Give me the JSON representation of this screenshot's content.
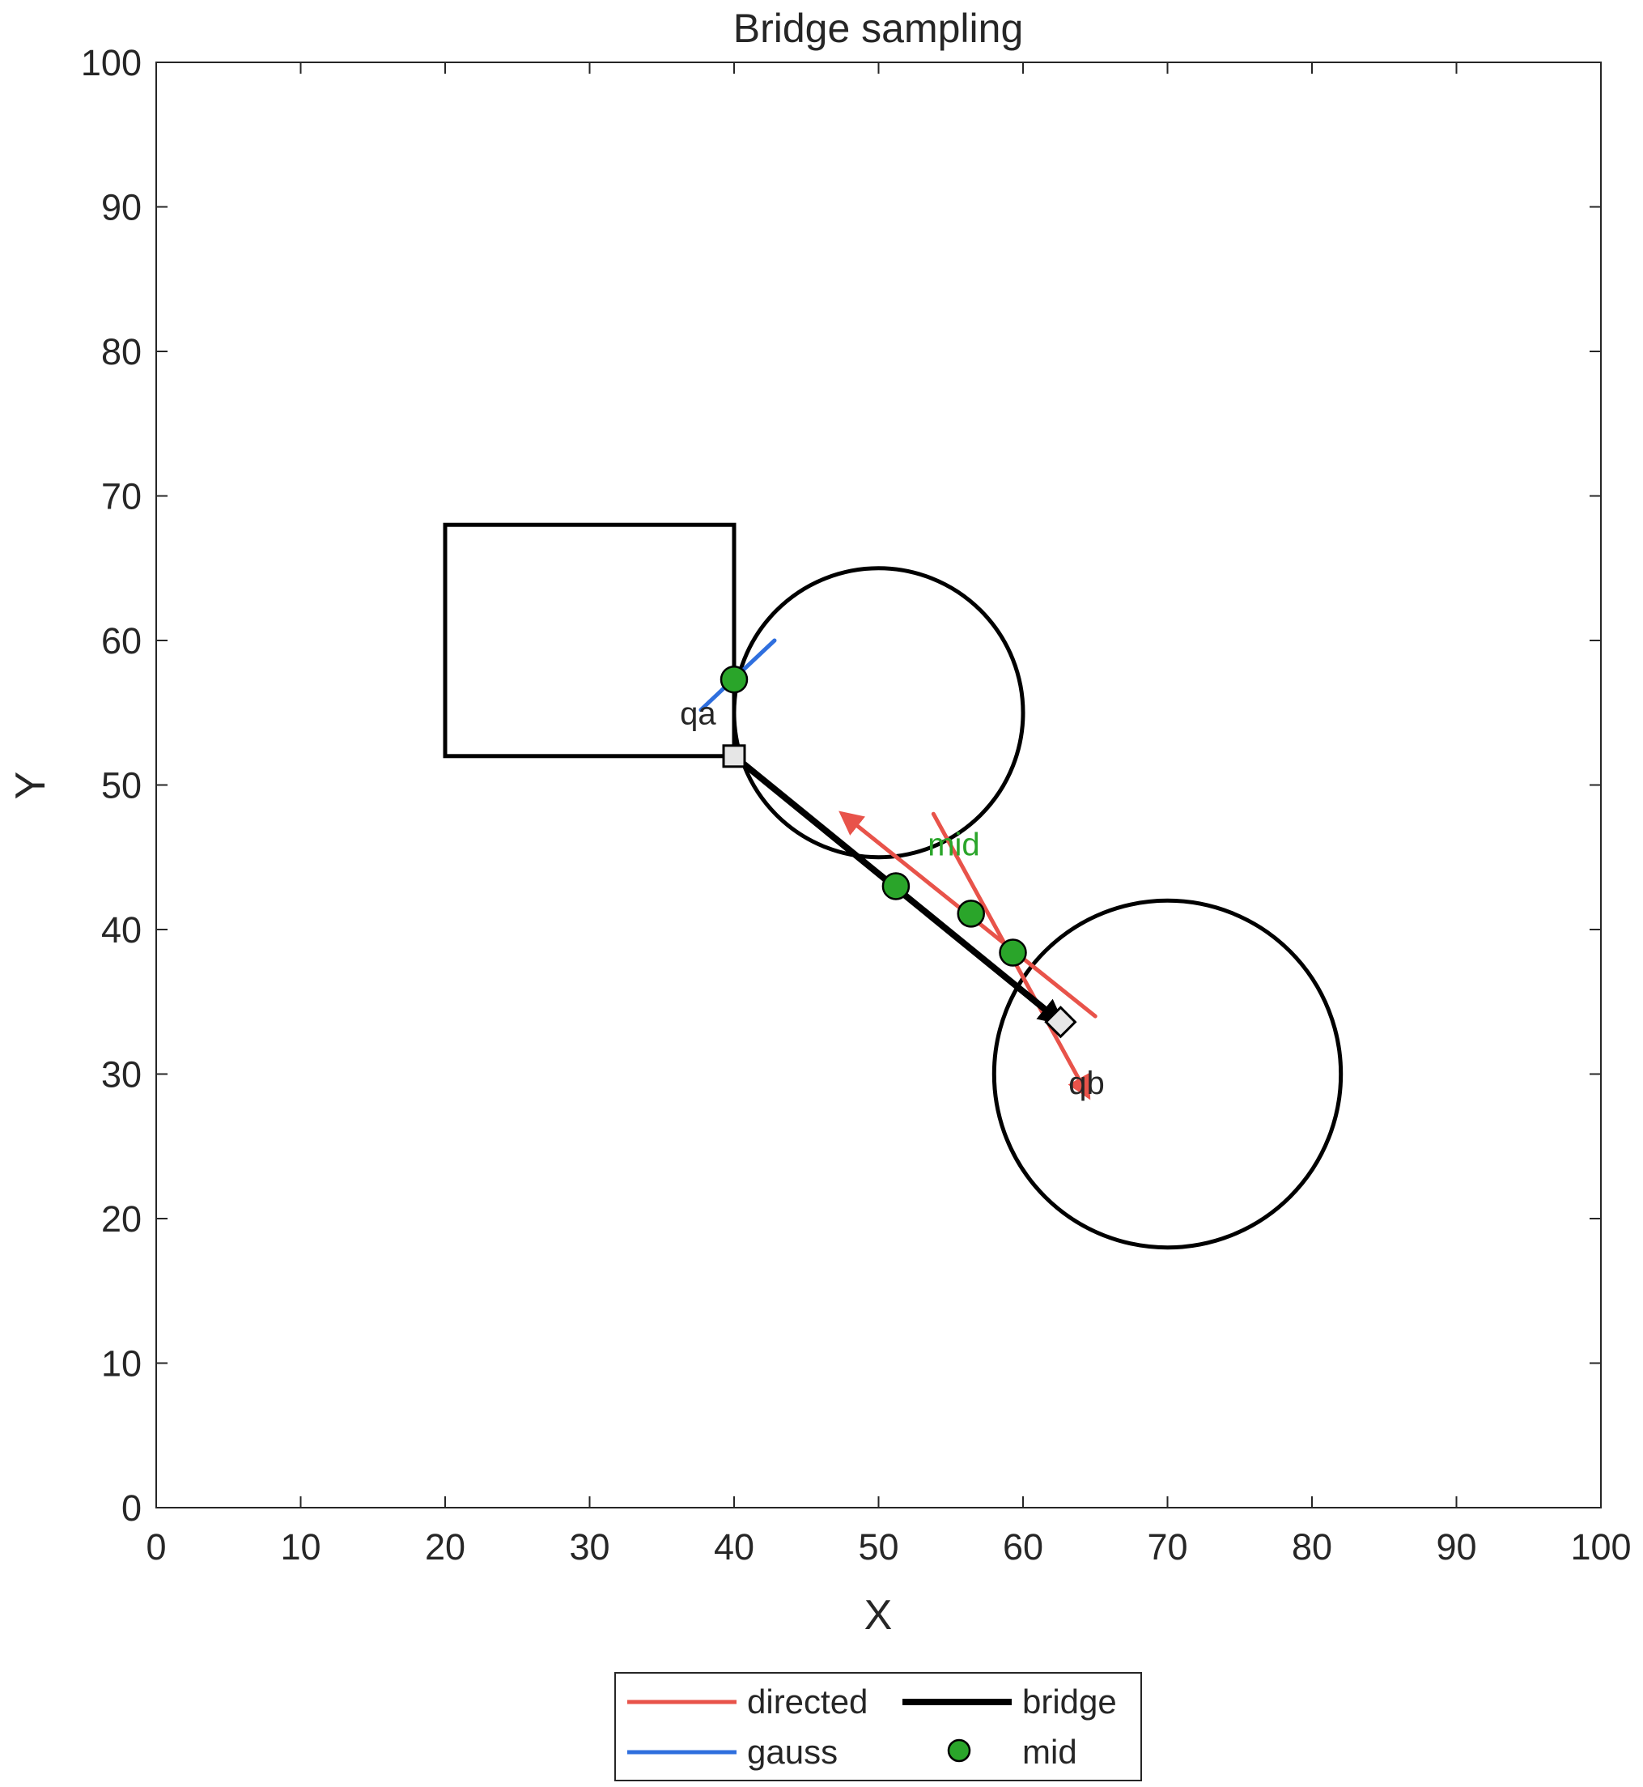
{
  "chart_data": {
    "type": "scatter",
    "title": "Bridge sampling",
    "xlabel": "X",
    "ylabel": "Y",
    "xlim": [
      0,
      100
    ],
    "ylim": [
      0,
      100
    ],
    "xticks": [
      "0",
      "10",
      "20",
      "30",
      "40",
      "50",
      "60",
      "70",
      "80",
      "90",
      "100"
    ],
    "yticks": [
      "0",
      "10",
      "20",
      "30",
      "40",
      "50",
      "60",
      "70",
      "80",
      "90",
      "100"
    ],
    "grid": false,
    "legend_position": "bottom-outside",
    "obstacles": [
      {
        "shape": "rectangle",
        "x": [
          20,
          40
        ],
        "y": [
          52,
          68
        ]
      },
      {
        "shape": "circle",
        "center": [
          50,
          55
        ],
        "radius": 10
      },
      {
        "shape": "circle",
        "center": [
          70,
          30
        ],
        "radius": 12
      }
    ],
    "series": [
      {
        "name": "directed",
        "color": "#e8534a",
        "segments": [
          {
            "from": [
              65,
              34
            ],
            "to": [
              47.5,
              48
            ],
            "arrow_at": "end"
          },
          {
            "from": [
              53.8,
              48
            ],
            "to": [
              64.5,
              28.5
            ],
            "arrow_at": "end"
          }
        ]
      },
      {
        "name": "gauss",
        "color": "#2f6fde",
        "segments": [
          {
            "from": [
              37.7,
              55.2
            ],
            "to": [
              42.8,
              60
            ]
          }
        ]
      },
      {
        "name": "bridge",
        "color": "#000000",
        "segments": [
          {
            "from": [
              40,
              52
            ],
            "to": [
              62.6,
              33.6
            ],
            "arrow_at": "end"
          }
        ]
      },
      {
        "name": "mid",
        "color": "#2aa52a",
        "points": [
          {
            "x": 40,
            "y": 57.3
          },
          {
            "x": 51.2,
            "y": 43
          },
          {
            "x": 56.4,
            "y": 41.1
          },
          {
            "x": 59.3,
            "y": 38.4
          }
        ]
      }
    ],
    "endpoints": [
      {
        "label": "qa",
        "marker": "square",
        "x": 40,
        "y": 52,
        "label_x": 37.5,
        "label_y": 55
      },
      {
        "label": "qb",
        "marker": "diamond",
        "x": 62.6,
        "y": 33.6,
        "label_x": 64.4,
        "label_y": 29.4
      }
    ],
    "annotations": [
      {
        "text": "mid",
        "x": 53.4,
        "y": 45.9,
        "color": "#2aa52a"
      }
    ],
    "legend": {
      "entries": [
        {
          "label": "directed",
          "series": "directed",
          "symbol": "line"
        },
        {
          "label": "bridge",
          "series": "bridge",
          "symbol": "thick-line"
        },
        {
          "label": "gauss",
          "series": "gauss",
          "symbol": "line"
        },
        {
          "label": "mid",
          "series": "mid",
          "symbol": "dot"
        }
      ]
    }
  }
}
